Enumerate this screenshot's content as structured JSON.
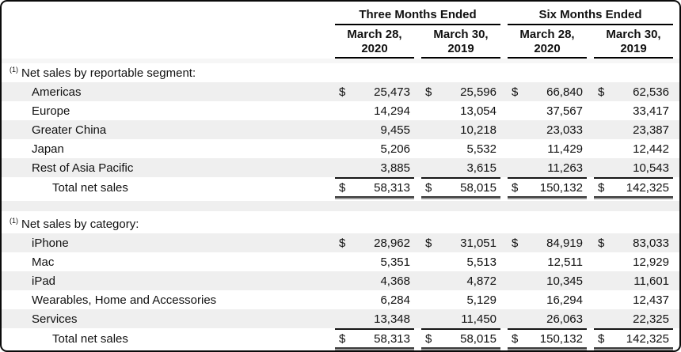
{
  "colors": {
    "row_stripe": "#efefef",
    "frame_border": "#0a0a0a",
    "header_rule": "#000000",
    "total_rule_top": "#161616",
    "total_rule_double": "#9b9b9b",
    "text": "#111111"
  },
  "table": {
    "groups": [
      {
        "label": "Three Months Ended"
      },
      {
        "label": "Six Months Ended"
      }
    ],
    "columns": [
      {
        "line1": "March 28,",
        "line2": "2020"
      },
      {
        "line1": "March 30,",
        "line2": "2019"
      },
      {
        "line1": "March 28,",
        "line2": "2020"
      },
      {
        "line1": "March 30,",
        "line2": "2019"
      }
    ],
    "sections": [
      {
        "marker": "(1)",
        "title": "Net sales by reportable segment:",
        "rows": [
          {
            "label": "Americas",
            "cur": "$",
            "v": [
              "25,473",
              "25,596",
              "66,840",
              "62,536"
            ]
          },
          {
            "label": "Europe",
            "cur": "",
            "v": [
              "14,294",
              "13,054",
              "37,567",
              "33,417"
            ]
          },
          {
            "label": "Greater China",
            "cur": "",
            "v": [
              "9,455",
              "10,218",
              "23,033",
              "23,387"
            ]
          },
          {
            "label": "Japan",
            "cur": "",
            "v": [
              "5,206",
              "5,532",
              "11,429",
              "12,442"
            ]
          },
          {
            "label": "Rest of Asia Pacific",
            "cur": "",
            "v": [
              "3,885",
              "3,615",
              "11,263",
              "10,543"
            ]
          }
        ],
        "total": {
          "label": "Total net sales",
          "cur": "$",
          "v": [
            "58,313",
            "58,015",
            "150,132",
            "142,325"
          ]
        }
      },
      {
        "marker": "(1)",
        "title": "Net sales by category:",
        "rows": [
          {
            "label": "iPhone",
            "cur": "$",
            "v": [
              "28,962",
              "31,051",
              "84,919",
              "83,033"
            ]
          },
          {
            "label": "Mac",
            "cur": "",
            "v": [
              "5,351",
              "5,513",
              "12,511",
              "12,929"
            ]
          },
          {
            "label": "iPad",
            "cur": "",
            "v": [
              "4,368",
              "4,872",
              "10,345",
              "11,601"
            ]
          },
          {
            "label": "Wearables, Home and Accessories",
            "cur": "",
            "v": [
              "6,284",
              "5,129",
              "16,294",
              "12,437"
            ]
          },
          {
            "label": "Services",
            "cur": "",
            "v": [
              "13,348",
              "11,450",
              "26,063",
              "22,325"
            ]
          }
        ],
        "total": {
          "label": "Total net sales",
          "cur": "$",
          "v": [
            "58,313",
            "58,015",
            "150,132",
            "142,325"
          ]
        }
      }
    ]
  }
}
